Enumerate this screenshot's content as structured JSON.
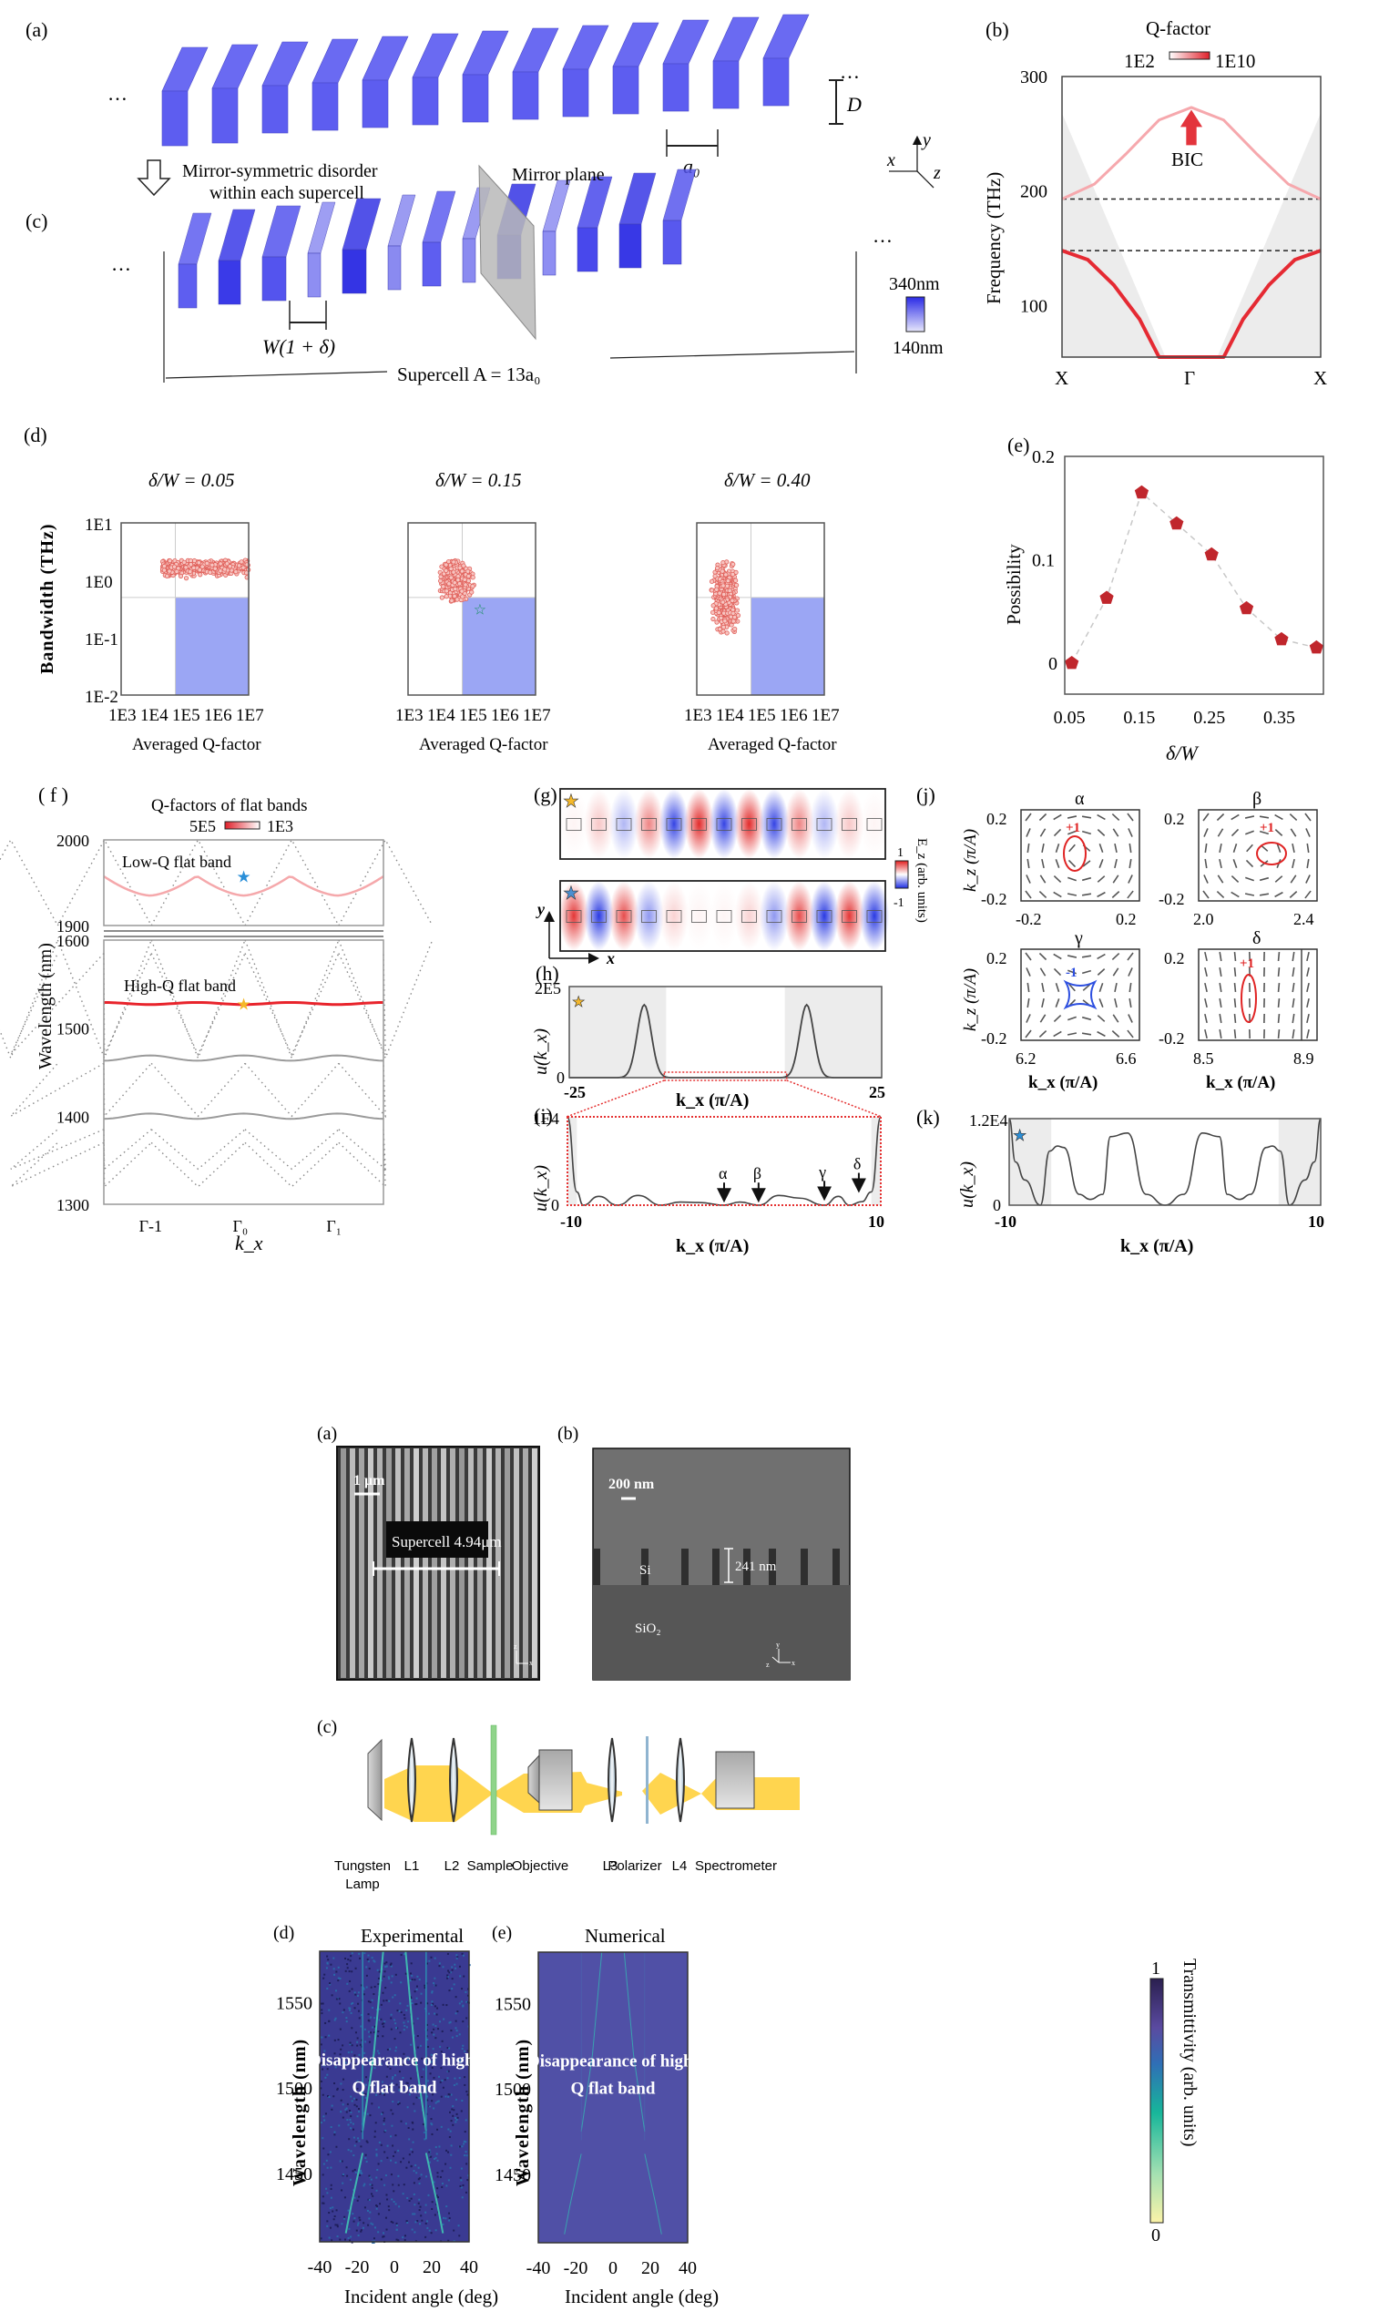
{
  "figure1": {
    "panel_a": {
      "label": "(a)",
      "ellipsis": "…",
      "dim_D": "D",
      "dim_a0": "a₀"
    },
    "panel_c": {
      "label": "(c)",
      "arrow_caption_line1": "Mirror-symmetric disorder",
      "arrow_caption_line2": "within each supercell",
      "mirror_plane": "Mirror plane",
      "width_label": "W(1 + δ)",
      "supercell_label": "Supercell  A = 13a₀",
      "legend_max": "340nm",
      "legend_min": "140nm",
      "axes": {
        "x": "x",
        "y": "y",
        "z": "z"
      },
      "bar_shades": [
        "#5e5ef0",
        "#3a3ae8",
        "#5454ee",
        "#8e8ef2",
        "#3434e4",
        "#8a8af0",
        "#5e5ef0",
        "#8a8af0",
        "#3434e4",
        "#8e8ef2",
        "#4848ec",
        "#3838e6",
        "#5858ee"
      ]
    }
  },
  "chart_data": [
    {
      "id": "b",
      "type": "line",
      "label": "(b)",
      "title": "Q-factor",
      "colorbar": {
        "min_label": "1E2",
        "max_label": "1E10"
      },
      "ylabel": "Frequency (THz)",
      "xlabel": "",
      "x_ticklabels": [
        "X",
        "Γ",
        "X"
      ],
      "y_ticks": [
        100,
        200,
        300
      ],
      "ylim": [
        55,
        300
      ],
      "dashed_lines": [
        193,
        148
      ],
      "annotation": "BIC",
      "bands": [
        {
          "name": "upper",
          "x": [
            -1,
            -0.75,
            -0.5,
            -0.25,
            0,
            0.25,
            0.5,
            0.75,
            1
          ],
          "y": [
            193,
            206,
            233,
            262,
            273,
            262,
            233,
            206,
            193
          ]
        },
        {
          "name": "lower",
          "x": [
            -1,
            -0.8,
            -0.6,
            -0.4,
            -0.25,
            0.25,
            0.4,
            0.6,
            0.8,
            1
          ],
          "y": [
            148,
            140,
            118,
            88,
            55,
            55,
            88,
            118,
            140,
            148
          ]
        }
      ]
    },
    {
      "id": "d",
      "type": "scatter",
      "label": "(d)",
      "ylabel": "Bandwidth (THz)",
      "y_ticklabels": [
        "1E1",
        "1E0",
        "1E-1",
        "1E-2"
      ],
      "x_ticklabels": [
        "1E3",
        "1E4",
        "1E5",
        "1E6",
        "1E7"
      ],
      "xlabel": "Averaged Q-factor",
      "xlim_log10": [
        3,
        7
      ],
      "ylim_log10": [
        -2,
        1
      ],
      "target_region": {
        "q_min_log10": 4.7,
        "bw_max_log10": -0.3
      },
      "subplots": [
        {
          "title": "δ/W  =  0.05",
          "cloud": {
            "q_log10": [
              4.3,
              7.0
            ],
            "bw_log10": [
              -0.3,
              0.35
            ]
          }
        },
        {
          "title": "δ/W  =  0.15",
          "cloud": {
            "q_log10": [
              3.5,
              6.7
            ],
            "bw_log10": [
              -1.1,
              0.35
            ]
          },
          "star": {
            "q_log10": 5.25,
            "bw_log10": -0.5
          }
        },
        {
          "title": "δ/W  =  0.40",
          "cloud": {
            "q_log10": [
              3.0,
              5.8
            ],
            "bw_log10": [
              -2.0,
              0.45
            ]
          }
        }
      ]
    },
    {
      "id": "e",
      "type": "line",
      "label": "(e)",
      "xlabel": "δ/W",
      "ylabel": "Possibility",
      "x": [
        0.05,
        0.1,
        0.15,
        0.2,
        0.25,
        0.3,
        0.35,
        0.4
      ],
      "y": [
        0.0,
        0.063,
        0.165,
        0.135,
        0.105,
        0.053,
        0.023,
        0.015
      ],
      "x_ticks": [
        0.05,
        0.15,
        0.25,
        0.35
      ],
      "y_ticks": [
        0,
        0.1,
        0.2
      ],
      "xlim": [
        0.04,
        0.41
      ],
      "ylim": [
        -0.03,
        0.2
      ]
    },
    {
      "id": "f",
      "type": "line",
      "label": "( f )",
      "title": "Q-factors of flat bands",
      "colorbar": {
        "left_label": "5E5",
        "right_label": "1E3"
      },
      "ylabel": "Wavelength (nm)",
      "xlabel": "k_x",
      "x_ticklabels": [
        "Γ-1",
        "Γ₀",
        "Γ₁"
      ],
      "upper_ylim": [
        1900,
        2000
      ],
      "lower_ylim": [
        1300,
        1600
      ],
      "upper_y_ticks": [
        1900,
        2000
      ],
      "lower_y_ticks": [
        1300,
        1400,
        1500,
        1600
      ],
      "low_q_band": {
        "label": "Low-Q flat band",
        "min": 1935,
        "max": 1958
      },
      "high_q_band": {
        "label": "High-Q flat band",
        "value": 1528
      },
      "gray_flat_bands": [
        1466,
        1400
      ]
    },
    {
      "id": "g",
      "type": "heatmap",
      "label": "(g)",
      "colorbar_label": "E_z (arb. units)",
      "colorbar_max": "1",
      "colorbar_min": "-1",
      "axes": {
        "x": "x",
        "y": "y"
      },
      "high_q_mode": [
        0.05,
        0.25,
        -0.35,
        0.55,
        -0.9,
        0.95,
        -0.9,
        0.95,
        -0.9,
        0.55,
        -0.35,
        0.25,
        0.05
      ],
      "low_q_mode": [
        0.9,
        -0.95,
        0.8,
        -0.5,
        0.2,
        0.05,
        0.05,
        0.2,
        -0.5,
        0.8,
        -0.95,
        0.9,
        -0.95
      ]
    },
    {
      "id": "h",
      "type": "line",
      "label": "(h)",
      "ylabel": "u(k_x)",
      "xlabel": "k_x (π/A)",
      "x_ticklabels": [
        "-25",
        "25"
      ],
      "y_ticklabels": [
        "0",
        "2E5"
      ],
      "xlim": [
        -25,
        25
      ],
      "ylim": [
        0,
        200000
      ],
      "peaks": [
        {
          "x": -13,
          "y": 160000
        },
        {
          "x": 13,
          "y": 160000
        }
      ],
      "shaded": [
        [
          -25,
          -9.5
        ],
        [
          9.5,
          25
        ]
      ],
      "zoom_window": [
        -9.5,
        9.5
      ]
    },
    {
      "id": "i",
      "type": "line",
      "label": "(i)",
      "ylabel": "u(k_x)",
      "xlabel": "k_x (π/A)",
      "x_ticklabels": [
        "-10",
        "10"
      ],
      "y_ticklabels": [
        "0",
        "1E4"
      ],
      "xlim": [
        -10,
        10
      ],
      "ylim": [
        0,
        10000
      ],
      "x": [
        -10,
        -9.4,
        -9.0,
        -8.0,
        -6.8,
        -5.5,
        -4.0,
        -2.8,
        -1.6,
        0.0,
        1.0,
        2.2,
        3.5,
        4.8,
        6.4,
        7.3,
        8.0,
        8.8,
        9.4,
        10
      ],
      "y": [
        10000,
        1500,
        0,
        1000,
        0,
        1100,
        0,
        350,
        300,
        0,
        350,
        0,
        1100,
        800,
        0,
        1000,
        0,
        400,
        1500,
        10000
      ],
      "markers": [
        {
          "name": "α",
          "x": 0.0
        },
        {
          "name": "β",
          "x": 2.2
        },
        {
          "name": "γ",
          "x": 6.4
        },
        {
          "name": "δ",
          "x": 8.6
        }
      ]
    },
    {
      "id": "j",
      "type": "scatter",
      "label": "(j)",
      "ylabel": "k_z (π/A)",
      "xlabel": "k_x (π/A)",
      "subplots": [
        {
          "title": "α",
          "xticks": [
            "-0.2",
            "0.2"
          ],
          "yticks": [
            "0.2",
            "-0.2"
          ],
          "charge": "+1"
        },
        {
          "title": "β",
          "xticks": [
            "2.0",
            "2.4"
          ],
          "yticks": [
            "0.2",
            "-0.2"
          ],
          "charge": "+1"
        },
        {
          "title": "γ",
          "xticks": [
            "6.2",
            "6.6"
          ],
          "yticks": [
            "0.2",
            "-0.2"
          ],
          "charge": "-1"
        },
        {
          "title": "δ",
          "xticks": [
            "8.5",
            "8.9"
          ],
          "yticks": [
            "0.2",
            "-0.2"
          ],
          "charge": "+1"
        }
      ]
    },
    {
      "id": "k",
      "type": "line",
      "label": "(k)",
      "ylabel": "u(k_x)",
      "xlabel": "k_x (π/A)",
      "x_ticklabels": [
        "-10",
        "10"
      ],
      "y_ticklabels": [
        "0",
        "1.2E4"
      ],
      "xlim": [
        -10,
        10
      ],
      "ylim": [
        0,
        12000
      ],
      "x": [
        -10,
        -9.6,
        -9.0,
        -8.0,
        -7.4,
        -6.9,
        -6.5,
        -5.5,
        -4.8,
        -4.0,
        -3.5,
        -2.4,
        -1.2,
        0,
        1.2,
        2.4,
        3.5,
        4.0,
        4.8,
        5.5,
        6.5,
        6.9,
        7.4,
        8.0,
        9.0,
        9.6,
        10
      ],
      "y": [
        12000,
        6000,
        3500,
        0,
        7500,
        8200,
        8000,
        1500,
        800,
        1500,
        9500,
        10000,
        1500,
        0,
        1500,
        10000,
        9500,
        1500,
        800,
        1500,
        8000,
        8200,
        7500,
        0,
        3500,
        6000,
        12000
      ],
      "shaded": [
        [
          -10,
          -7.3
        ],
        [
          7.3,
          10
        ]
      ]
    },
    {
      "id": "d2",
      "type": "heatmap",
      "label": "(d)",
      "title": "Experimental",
      "xlabel": "Incident angle (deg)",
      "ylabel": "Wavelength (nm)",
      "x_ticks": [
        -40,
        -20,
        0,
        20,
        40
      ],
      "y_ticks": [
        1450,
        1500,
        1550
      ],
      "xlim": [
        -40,
        40
      ],
      "ylim": [
        1410,
        1580
      ],
      "annotation": "Disappearance of high-\nQ flat band"
    },
    {
      "id": "e2",
      "type": "heatmap",
      "label": "(e)",
      "title": "Numerical",
      "xlabel": "Incident angle (deg)",
      "ylabel": "Wavelength (nm)",
      "x_ticks": [
        -40,
        -20,
        0,
        20,
        40
      ],
      "y_ticks": [
        1450,
        1500,
        1550
      ],
      "xlim": [
        -40,
        40
      ],
      "ylim": [
        1410,
        1580
      ],
      "colorbar": {
        "label": "Transmittivity  (arb. units)",
        "min": "0",
        "max": "1"
      },
      "annotation": "Disappearance of high-\nQ flat band"
    }
  ],
  "figure2": {
    "panel_a": {
      "label": "(a)",
      "scale_bar": "1 μm",
      "supercell": "Supercell 4.94μm",
      "axes": {
        "z": "z",
        "x": "x"
      }
    },
    "panel_b": {
      "label": "(b)",
      "scale_bar": "200 nm",
      "height": "241 nm",
      "si": "Si",
      "sio2": "SiO₂",
      "axes": {
        "y": "y",
        "z": "z",
        "x": "x"
      }
    },
    "panel_c": {
      "label": "(c)",
      "components": [
        "Tungsten\nLamp",
        "L1",
        "L2",
        "Sample",
        "Objective",
        "L3",
        "Polarizer",
        "L4",
        "Spectrometer"
      ]
    }
  }
}
